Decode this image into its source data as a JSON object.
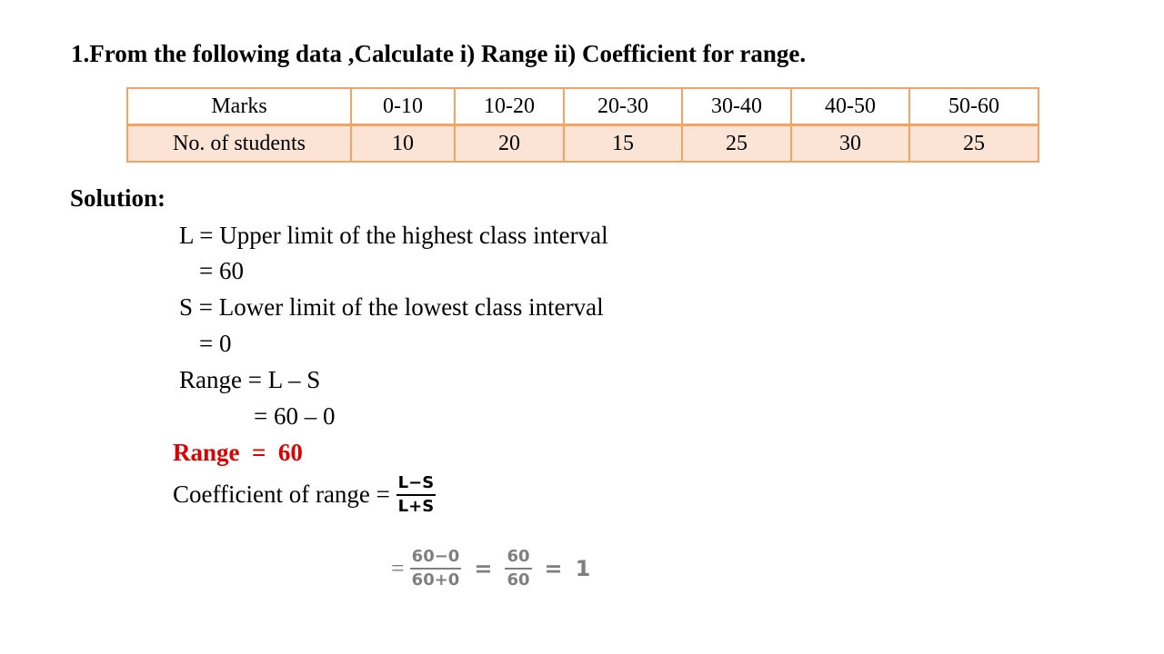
{
  "question": "1.From the following data ,Calculate i) Range  ii) Coefficient for range.",
  "table": {
    "row1": [
      "Marks",
      "0-10",
      "10-20",
      "20-30",
      "30-40",
      "40-50",
      "50-60"
    ],
    "row2": [
      "No. of students",
      "10",
      "20",
      "15",
      "25",
      "30",
      "25"
    ],
    "border_color": "#f4a460",
    "row2_fill": "#fbe4d5"
  },
  "solution": {
    "heading": "Solution:",
    "l_def": "L = Upper limit of the highest  class interval",
    "l_val": "= 60",
    "s_def": "S = Lower limit of the lowest class interval",
    "s_val": "= 0",
    "range_formula": "Range = L – S",
    "range_sub": "=  60 – 0",
    "range_result": "Range  =  60",
    "coef_label": "Coefficient of range = ",
    "coef_num": "L−S",
    "coef_den": "L+S",
    "calc": {
      "eq1": "=",
      "frac1_num": "60−0",
      "frac1_den": "60+0",
      "eq2": "=",
      "frac2_num": "60",
      "frac2_den": "60",
      "eq3": "=",
      "result": "1"
    }
  },
  "colors": {
    "highlight": "#e00000",
    "faded": "#7f7f7f"
  }
}
